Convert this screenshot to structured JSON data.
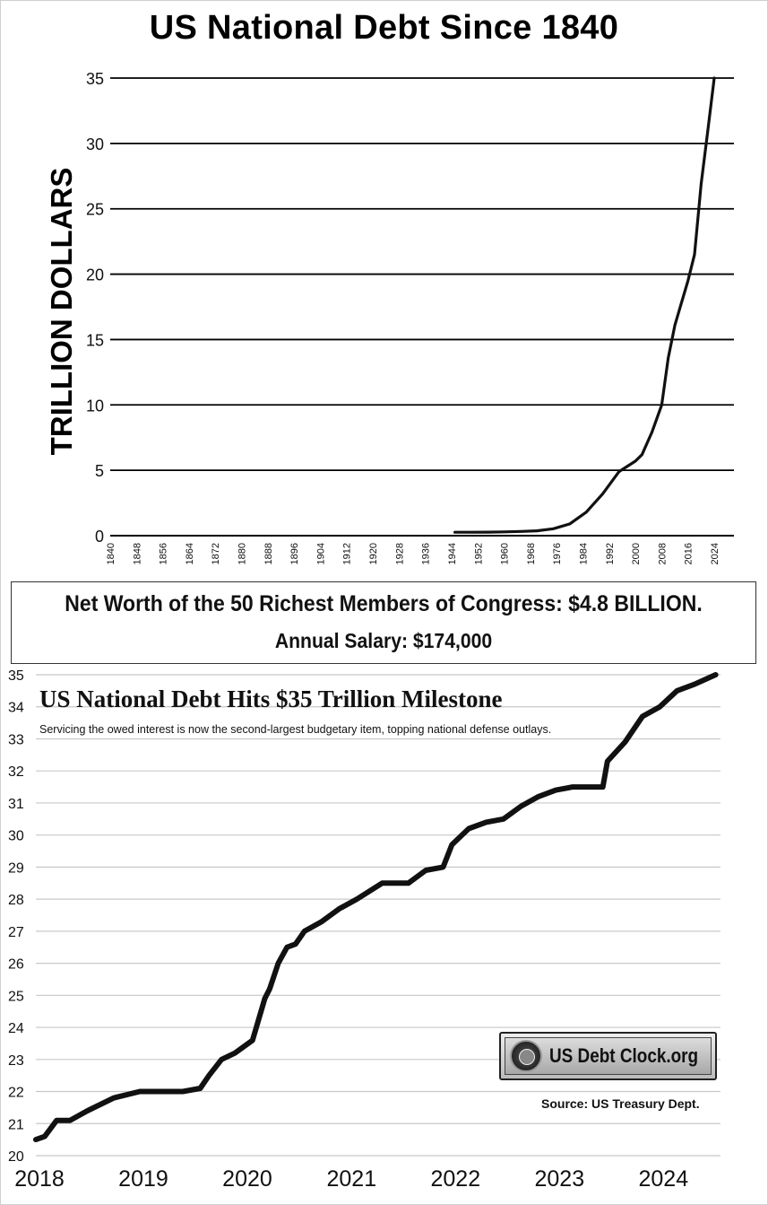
{
  "top_chart": {
    "title": "US National Debt Since 1840",
    "ylabel": "TRILLION DOLLARS",
    "chart_data": {
      "type": "line",
      "title": "US National Debt Since 1840",
      "xlabel": "",
      "ylabel": "TRILLION DOLLARS",
      "x_ticks": [
        "1840",
        "1848",
        "1856",
        "1864",
        "1872",
        "1880",
        "1888",
        "1896",
        "1904",
        "1912",
        "1920",
        "1928",
        "1936",
        "1944",
        "1952",
        "1960",
        "1968",
        "1976",
        "1984",
        "1992",
        "2000",
        "2008",
        "2016",
        "2024"
      ],
      "y_ticks": [
        0,
        5,
        10,
        15,
        20,
        25,
        30,
        35
      ],
      "xlim": [
        1840,
        2030
      ],
      "ylim": [
        0,
        35
      ],
      "grid": "horizontal",
      "series": [
        {
          "x": [
            1945,
            1950,
            1955,
            1960,
            1965,
            1970,
            1975,
            1980,
            1985,
            1990,
            1995,
            2000,
            2002,
            2005,
            2008,
            2010,
            2012,
            2014,
            2016,
            2018,
            2020,
            2022,
            2024
          ],
          "values": [
            0.26,
            0.26,
            0.27,
            0.29,
            0.32,
            0.37,
            0.53,
            0.9,
            1.8,
            3.2,
            4.9,
            5.7,
            6.2,
            7.9,
            10.0,
            13.6,
            16.1,
            17.8,
            19.5,
            21.5,
            26.9,
            30.9,
            35.0
          ]
        }
      ]
    }
  },
  "banner": {
    "line1": "Net Worth of the 50 Richest Members of Congress: $4.8 BILLION.",
    "line2": "Annual Salary: $174,000"
  },
  "bottom_chart": {
    "title": "US National Debt Hits $35 Trillion Milestone",
    "subtitle": "Servicing the owed interest is now the second-largest budgetary item, topping national defense outlays.",
    "logo_text": "US Debt Clock.org",
    "source": "Source: US Treasury Dept.",
    "chart_data": {
      "type": "line",
      "title": "US National Debt Hits $35 Trillion Milestone",
      "subtitle": "Servicing the owed interest is now the second-largest budgetary item, topping national defense outlays.",
      "xlabel": "",
      "ylabel": "",
      "x_ticks": [
        "2018",
        "2019",
        "2020",
        "2021",
        "2022",
        "2023",
        "2024"
      ],
      "y_ticks": [
        20,
        21,
        22,
        23,
        24,
        25,
        26,
        27,
        28,
        29,
        30,
        31,
        32,
        33,
        34,
        35
      ],
      "xlim": [
        "2018-01-01",
        "2024-08-01"
      ],
      "ylim": [
        20,
        35
      ],
      "grid": "horizontal",
      "series": [
        {
          "x": [
            "2018-01-01",
            "2018-02-01",
            "2018-03-15",
            "2018-05-01",
            "2018-07-01",
            "2018-10-01",
            "2019-01-01",
            "2019-04-01",
            "2019-06-01",
            "2019-08-01",
            "2019-09-01",
            "2019-10-15",
            "2019-12-01",
            "2020-02-01",
            "2020-03-15",
            "2020-04-01",
            "2020-05-01",
            "2020-06-01",
            "2020-07-01",
            "2020-08-01",
            "2020-10-01",
            "2020-12-01",
            "2021-02-01",
            "2021-05-01",
            "2021-08-01",
            "2021-10-01",
            "2021-12-01",
            "2022-01-01",
            "2022-03-01",
            "2022-05-01",
            "2022-07-01",
            "2022-09-01",
            "2022-11-01",
            "2023-01-01",
            "2023-03-01",
            "2023-05-01",
            "2023-06-15",
            "2023-07-01",
            "2023-09-01",
            "2023-11-01",
            "2024-01-01",
            "2024-03-01",
            "2024-05-01",
            "2024-07-15"
          ],
          "values": [
            20.5,
            20.6,
            21.1,
            21.1,
            21.4,
            21.8,
            22.0,
            22.0,
            22.0,
            22.1,
            22.5,
            23.0,
            23.2,
            23.6,
            24.9,
            25.2,
            26.0,
            26.5,
            26.6,
            27.0,
            27.3,
            27.7,
            28.0,
            28.5,
            28.5,
            28.9,
            29.0,
            29.7,
            30.2,
            30.4,
            30.5,
            30.9,
            31.2,
            31.4,
            31.5,
            31.5,
            31.5,
            32.3,
            32.9,
            33.7,
            34.0,
            34.5,
            34.7,
            35.0
          ]
        }
      ]
    }
  }
}
